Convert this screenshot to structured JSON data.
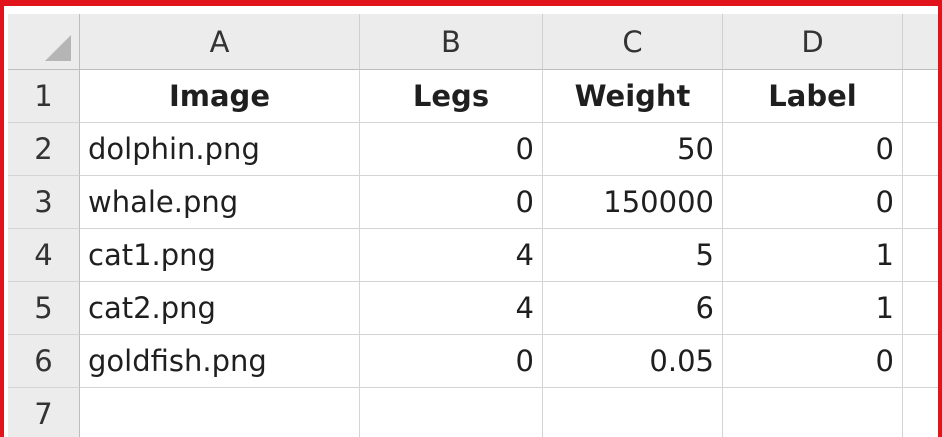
{
  "columns": [
    "A",
    "B",
    "C",
    "D"
  ],
  "rows": [
    {
      "num": "1",
      "cells": [
        "Image",
        "Legs",
        "Weight",
        "Label"
      ]
    },
    {
      "num": "2",
      "cells": [
        "dolphin.png",
        "0",
        "50",
        "0"
      ]
    },
    {
      "num": "3",
      "cells": [
        "whale.png",
        "0",
        "150000",
        "0"
      ]
    },
    {
      "num": "4",
      "cells": [
        "cat1.png",
        "4",
        "5",
        "1"
      ]
    },
    {
      "num": "5",
      "cells": [
        "cat2.png",
        "4",
        "6",
        "1"
      ]
    },
    {
      "num": "6",
      "cells": [
        "goldfish.png",
        "0",
        "0.05",
        "0"
      ]
    },
    {
      "num": "7",
      "cells": [
        "",
        "",
        "",
        ""
      ]
    }
  ]
}
